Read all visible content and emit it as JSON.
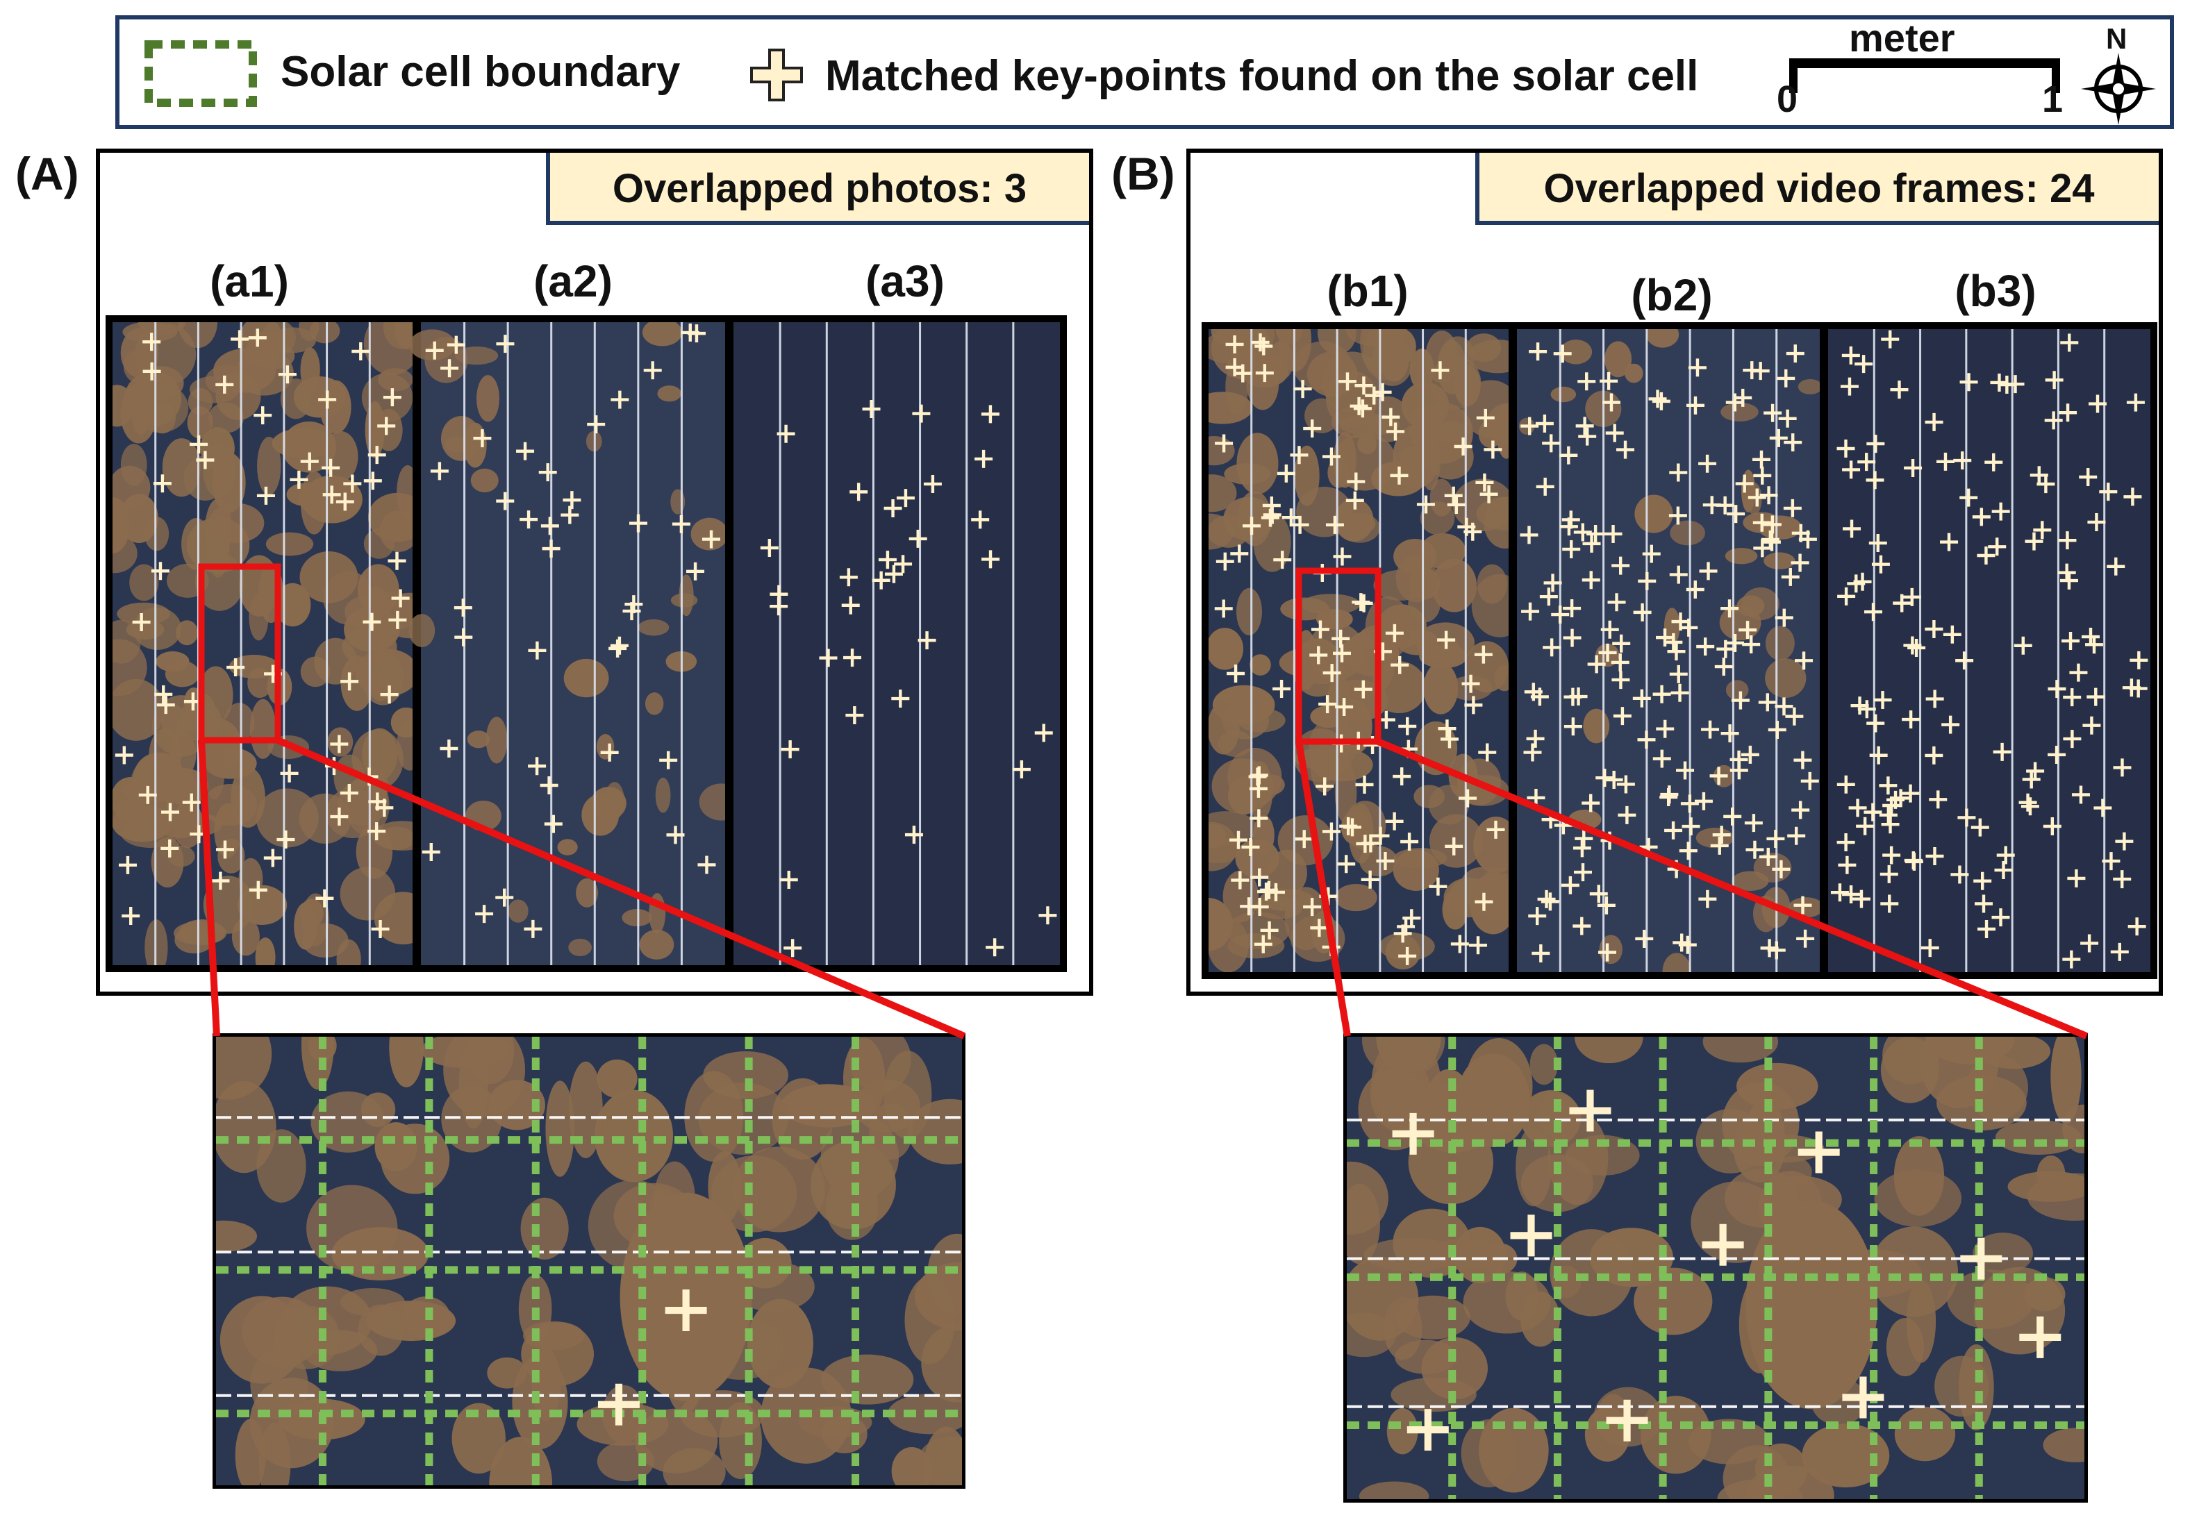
{
  "legend": {
    "boundary_label": "Solar cell boundary",
    "keypoint_label": "Matched key-points found on the solar cell",
    "scale_title": "meter",
    "scale_start": "0",
    "scale_end": "1",
    "north_label": "N"
  },
  "panel_a": {
    "letter": "(A)",
    "count_label": "Overlapped photos: 3",
    "subpanels": [
      "(a1)",
      "(a2)",
      "(a3)"
    ]
  },
  "panel_b": {
    "letter": "(B)",
    "count_label": "Overlapped video frames: 24",
    "subpanels": [
      "(b1)",
      "(b2)",
      "(b3)"
    ]
  },
  "colors": {
    "panel_blue": "#2b3650",
    "dust_brown": "#8a6b4e",
    "keypoint": "#fff2cc",
    "zoom_red": "#e81212",
    "boundary_green": "#7fbf5a",
    "header_fill": "#fff2cc",
    "frame_navy": "#1f3864"
  },
  "icons": {
    "keypoint": "plus-icon",
    "boundary": "dashed-rectangle-icon",
    "north": "compass-icon"
  }
}
